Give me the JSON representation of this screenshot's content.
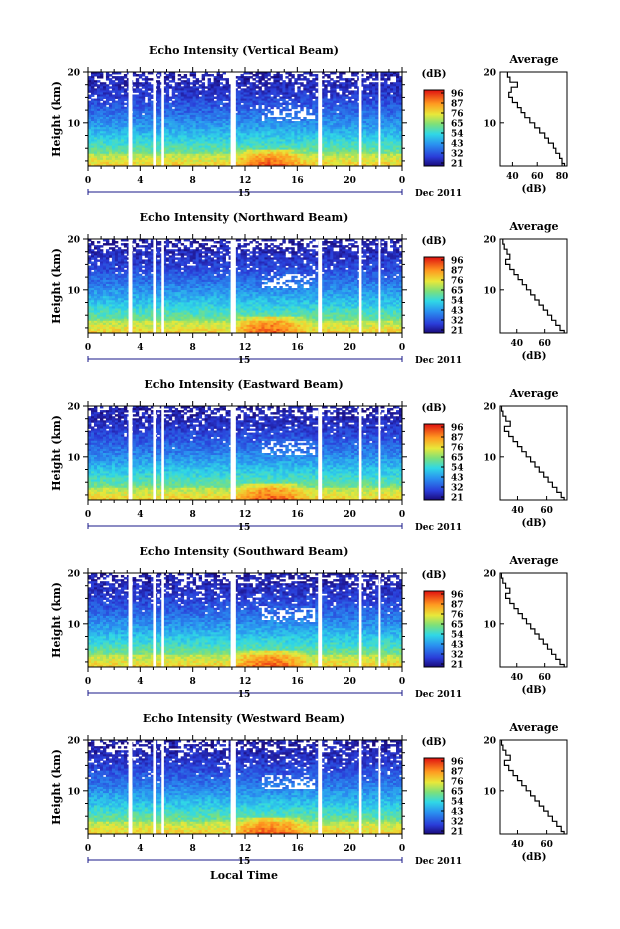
{
  "chart_data": {
    "type": "heatmap",
    "figure": {
      "xlabel": "Local Time",
      "date_label": "Dec 2011",
      "date_tick": "15",
      "x_ticks": [
        "0",
        "4",
        "8",
        "12",
        "16",
        "20",
        "0"
      ],
      "x_tick_values": [
        0,
        4,
        8,
        12,
        16,
        20,
        24
      ],
      "xlim": [
        0,
        24
      ],
      "y_ticks": [
        "20",
        "10"
      ],
      "y_tick_values": [
        20,
        10
      ],
      "ylim": [
        1.5,
        20
      ],
      "ylabel": "Height (km)",
      "colorbar_unit": "(dB)",
      "data_gaps_hours": [
        [
          3.1,
          3.4
        ],
        [
          5.0,
          5.2
        ],
        [
          5.6,
          5.8
        ],
        [
          10.9,
          11.3
        ],
        [
          17.6,
          17.9
        ],
        [
          20.7,
          20.9
        ],
        [
          22.2,
          22.35
        ]
      ]
    },
    "panels": [
      {
        "title": "Echo Intensity (Vertical Beam)",
        "colorbar_ticks": [
          "96",
          "87",
          "76",
          "65",
          "54",
          "43",
          "32",
          "21"
        ],
        "profile": {
          "title": "Average",
          "xlabel": "(dB)",
          "x_ticks": [
            "40",
            "60",
            "80"
          ],
          "x_tick_values": [
            40,
            60,
            80
          ],
          "xlim": [
            30,
            84
          ],
          "y_ticks": [
            "20",
            "10"
          ],
          "heights": [
            1.5,
            2.5,
            3.5,
            4.5,
            5.5,
            6.5,
            7.5,
            8.5,
            9.5,
            10.5,
            11.5,
            12.5,
            13.5,
            14.5,
            15.5,
            16.5,
            17.5,
            18.5,
            19.5
          ],
          "values": [
            82,
            80,
            78,
            75,
            73,
            69,
            66,
            62,
            58,
            54,
            50,
            47,
            44,
            40,
            37,
            39,
            44,
            38,
            36
          ]
        }
      },
      {
        "title": "Echo Intensity (Northward Beam)",
        "colorbar_ticks": [
          "96",
          "87",
          "76",
          "65",
          "54",
          "43",
          "32",
          "21"
        ],
        "profile": {
          "title": "Average",
          "xlabel": "(dB)",
          "x_ticks": [
            "40",
            "60"
          ],
          "x_tick_values": [
            40,
            60
          ],
          "xlim": [
            28,
            76
          ],
          "y_ticks": [
            "20",
            "10"
          ],
          "heights": [
            1.5,
            2.5,
            3.5,
            4.5,
            5.5,
            6.5,
            7.5,
            8.5,
            9.5,
            10.5,
            11.5,
            12.5,
            13.5,
            14.5,
            15.5,
            16.5,
            17.5,
            18.5,
            19.5
          ],
          "values": [
            74,
            71,
            68,
            65,
            62,
            59,
            56,
            53,
            50,
            47,
            44,
            41,
            38,
            35,
            32,
            35,
            33,
            31,
            30
          ]
        }
      },
      {
        "title": "Echo Intensity (Eastward Beam)",
        "colorbar_ticks": [
          "96",
          "87",
          "76",
          "65",
          "54",
          "43",
          "32",
          "21"
        ],
        "profile": {
          "title": "Average",
          "xlabel": "(dB)",
          "x_ticks": [
            "40",
            "60"
          ],
          "x_tick_values": [
            40,
            60
          ],
          "xlim": [
            28,
            74
          ],
          "y_ticks": [
            "20",
            "10"
          ],
          "heights": [
            1.5,
            2.5,
            3.5,
            4.5,
            5.5,
            6.5,
            7.5,
            8.5,
            9.5,
            10.5,
            11.5,
            12.5,
            13.5,
            14.5,
            15.5,
            16.5,
            17.5,
            18.5,
            19.5
          ],
          "values": [
            72,
            70,
            67,
            64,
            61,
            58,
            55,
            52,
            49,
            46,
            43,
            40,
            37,
            34,
            31,
            35,
            32,
            30,
            29
          ]
        }
      },
      {
        "title": "Echo Intensity (Southward Beam)",
        "colorbar_ticks": [
          "96",
          "87",
          "76",
          "65",
          "54",
          "43",
          "32",
          "21"
        ],
        "profile": {
          "title": "Average",
          "xlabel": "(dB)",
          "x_ticks": [
            "40",
            "60"
          ],
          "x_tick_values": [
            40,
            60
          ],
          "xlim": [
            28,
            76
          ],
          "y_ticks": [
            "20",
            "10"
          ],
          "heights": [
            1.5,
            2.5,
            3.5,
            4.5,
            5.5,
            6.5,
            7.5,
            8.5,
            9.5,
            10.5,
            11.5,
            12.5,
            13.5,
            14.5,
            15.5,
            16.5,
            17.5,
            18.5,
            19.5
          ],
          "values": [
            74,
            71,
            68,
            65,
            62,
            59,
            56,
            53,
            50,
            47,
            44,
            41,
            38,
            35,
            32,
            35,
            32,
            30,
            29
          ]
        }
      },
      {
        "title": "Echo Intensity (Westward Beam)",
        "colorbar_ticks": [
          "96",
          "87",
          "76",
          "65",
          "54",
          "43",
          "32",
          "21"
        ],
        "profile": {
          "title": "Average",
          "xlabel": "(dB)",
          "x_ticks": [
            "40",
            "60"
          ],
          "x_tick_values": [
            40,
            60
          ],
          "xlim": [
            28,
            74
          ],
          "y_ticks": [
            "20",
            "10"
          ],
          "heights": [
            1.5,
            2.5,
            3.5,
            4.5,
            5.5,
            6.5,
            7.5,
            8.5,
            9.5,
            10.5,
            11.5,
            12.5,
            13.5,
            14.5,
            15.5,
            16.5,
            17.5,
            18.5,
            19.5
          ],
          "values": [
            72,
            70,
            67,
            64,
            61,
            58,
            55,
            52,
            49,
            46,
            43,
            40,
            37,
            34,
            31,
            35,
            32,
            30,
            29
          ]
        }
      }
    ]
  }
}
